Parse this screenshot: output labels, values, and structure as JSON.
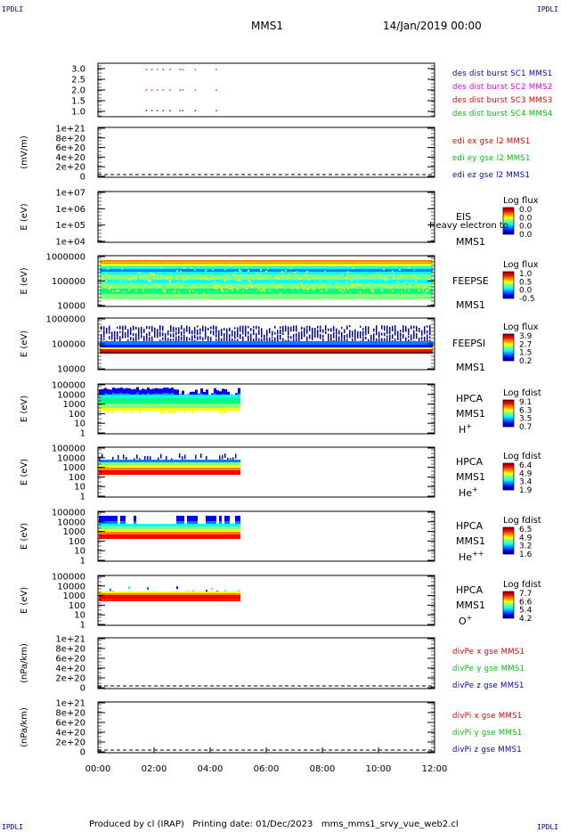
{
  "header": {
    "corner_label": "IPDLI",
    "spacecraft": "MMS1",
    "date": "14/Jan/2019 00:00"
  },
  "footer": {
    "produced_by": "Produced by cl (IRAP)",
    "printing_date": "Printing date: 01/Dec/2023",
    "filename": "mms_mms1_srvy_vue_web2.cl"
  },
  "colors": {
    "red": "#e00000",
    "magenta": "#e000e0",
    "blue": "#0000c0",
    "green": "#00c000",
    "darkblue": "#00008b"
  },
  "chart_data": {
    "type": "multi-panel time series",
    "x": {
      "ticks": [
        "00:00",
        "02:00",
        "04:00",
        "06:00",
        "08:00",
        "10:00",
        "12:00"
      ],
      "range_hours": [
        0,
        12
      ]
    },
    "panels": [
      {
        "id": "burst",
        "type": "scatter",
        "ylabel": "",
        "ytick_labels": [
          "3.0",
          "2.5",
          "2.0",
          "1.5",
          "1.0"
        ],
        "ylim": [
          0.7,
          3.3
        ],
        "legend": [
          {
            "label": "des dist burst SC1 MMS1",
            "color": "#0000c0"
          },
          {
            "label": "des dist burst SC2 MMS2",
            "color": "#e000e0"
          },
          {
            "label": "des dist burst SC3 MMS3",
            "color": "#e00000"
          },
          {
            "label": "des dist burst SC4 MMS4",
            "color": "#00c000"
          }
        ],
        "series": [
          {
            "y": 3.0,
            "color": "#e00000",
            "times": [
              1.7,
              1.9,
              2.1,
              2.3,
              2.55,
              2.9,
              3.0,
              3.45,
              4.2
            ]
          },
          {
            "y": 2.0,
            "color": "#e00000",
            "times": [
              1.7,
              1.9,
              2.1,
              2.3,
              2.55,
              2.9,
              3.0,
              3.45,
              4.2
            ]
          },
          {
            "y": 1.0,
            "color": "#0000c0",
            "times": [
              1.7,
              1.9,
              2.1,
              2.3,
              2.55,
              2.9,
              3.0,
              3.45,
              4.2
            ]
          }
        ]
      },
      {
        "id": "edi",
        "type": "line",
        "ylabel": "(mV/m)",
        "ytick_labels": [
          "1e+21",
          "8e+20",
          "6e+20",
          "4e+20",
          "2e+20",
          "0"
        ],
        "ylim": [
          0,
          1e+21
        ],
        "legend": [
          {
            "label": "edi ex gse l2 MMS1",
            "color": "#e00000"
          },
          {
            "label": "edi ey gse l2 MMS1",
            "color": "#00c000"
          },
          {
            "label": "edi ez gse l2 MMS1",
            "color": "#0000c0"
          }
        ],
        "zero_line": true
      },
      {
        "id": "eis",
        "type": "heatmap",
        "ylabel": "E (eV)",
        "ytick_labels": [
          "1e+07",
          "1e+06",
          "1e+05",
          "1e+04"
        ],
        "instrument": [
          "EIS",
          "MMS1"
        ],
        "overlay_text": "Heavy electron to",
        "colorbar": {
          "title": "Log flux",
          "ticks": [
            "0.0",
            "0.0",
            "0.0",
            "0.0"
          ]
        }
      },
      {
        "id": "feepse",
        "type": "heatmap",
        "ylabel": "E (eV)",
        "ytick_labels": [
          "1000000",
          "100000",
          "10000"
        ],
        "instrument": [
          "FEEPSE",
          "MMS1"
        ],
        "colorbar": {
          "title": "Log flux",
          "ticks": [
            "1.0",
            "0.5",
            "0.0",
            "-0.5"
          ]
        }
      },
      {
        "id": "feepsi",
        "type": "heatmap",
        "ylabel": "E (eV)",
        "ytick_labels": [
          "1000000",
          "100000",
          "10000"
        ],
        "instrument": [
          "FEEPSI",
          "MMS1"
        ],
        "colorbar": {
          "title": "Log flux",
          "ticks": [
            "3.9",
            "2.7",
            "1.5",
            "0.2"
          ]
        }
      },
      {
        "id": "hpca_h",
        "type": "heatmap",
        "ylabel": "E (eV)",
        "ytick_labels": [
          "100000",
          "10000",
          "1000",
          "100",
          "10",
          "1"
        ],
        "instrument": [
          "HPCA",
          "MMS1",
          "H+"
        ],
        "colorbar": {
          "title": "Log fdist",
          "ticks": [
            "9.1",
            "6.3",
            "3.5",
            "0.7"
          ]
        },
        "data_end_hours": 5.0
      },
      {
        "id": "hpca_he",
        "type": "heatmap",
        "ylabel": "E (eV)",
        "ytick_labels": [
          "100000",
          "10000",
          "1000",
          "100",
          "10",
          "1"
        ],
        "instrument": [
          "HPCA",
          "MMS1",
          "He+"
        ],
        "colorbar": {
          "title": "Log fdist",
          "ticks": [
            "6.4",
            "4.9",
            "3.4",
            "1.9"
          ]
        },
        "data_end_hours": 5.0
      },
      {
        "id": "hpca_hepp",
        "type": "heatmap",
        "ylabel": "E (eV)",
        "ytick_labels": [
          "100000",
          "10000",
          "1000",
          "100",
          "10",
          "1"
        ],
        "instrument": [
          "HPCA",
          "MMS1",
          "He++"
        ],
        "colorbar": {
          "title": "Log fdist",
          "ticks": [
            "6.5",
            "4.9",
            "3.2",
            "1.6"
          ]
        },
        "data_end_hours": 5.0
      },
      {
        "id": "hpca_o",
        "type": "heatmap",
        "ylabel": "E (eV)",
        "ytick_labels": [
          "100000",
          "10000",
          "1000",
          "100",
          "10",
          "1"
        ],
        "instrument": [
          "HPCA",
          "MMS1",
          "O+"
        ],
        "colorbar": {
          "title": "Log fdist",
          "ticks": [
            "7.7",
            "6.6",
            "5.4",
            "4.2"
          ]
        },
        "data_end_hours": 5.0
      },
      {
        "id": "divpe",
        "type": "line",
        "ylabel": "(nPa/km)",
        "ytick_labels": [
          "1e+21",
          "8e+20",
          "6e+20",
          "4e+20",
          "2e+20",
          "0"
        ],
        "ylim": [
          0,
          1e+21
        ],
        "legend": [
          {
            "label": "divPe x gse MMS1",
            "color": "#e00000"
          },
          {
            "label": "divPe y gse MMS1",
            "color": "#00c000"
          },
          {
            "label": "divPe z gse MMS1",
            "color": "#0000c0"
          }
        ],
        "zero_line": true
      },
      {
        "id": "divpi",
        "type": "line",
        "ylabel": "(nPa/km)",
        "ytick_labels": [
          "1e+21",
          "8e+20",
          "6e+20",
          "4e+20",
          "2e+20",
          "0"
        ],
        "ylim": [
          0,
          1e+21
        ],
        "legend": [
          {
            "label": "divPi x gse MMS1",
            "color": "#e00000"
          },
          {
            "label": "divPi y gse MMS1",
            "color": "#00c000"
          },
          {
            "label": "divPi z gse MMS1",
            "color": "#0000c0"
          }
        ],
        "zero_line": true
      }
    ]
  }
}
